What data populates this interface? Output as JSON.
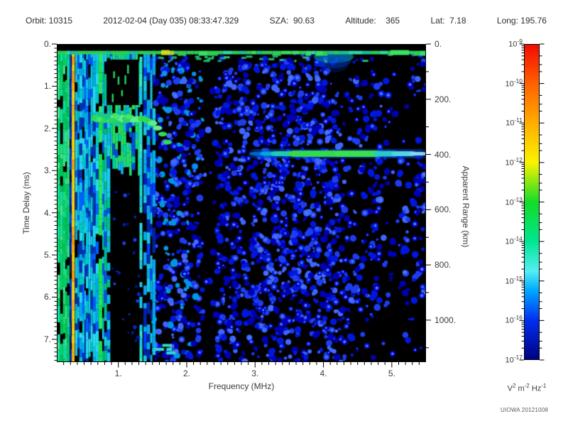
{
  "header": {
    "fields": [
      {
        "label": "Orbit: ",
        "value": "10315"
      },
      {
        "label": "",
        "value": "2012-02-04 (Day 035) 08:33:47.329"
      },
      {
        "label": "SZA:  ",
        "value": "90.63"
      },
      {
        "label": "Altitude:    ",
        "value": "365"
      },
      {
        "label": "Lat:  ",
        "value": "7.18"
      },
      {
        "label": "Long: ",
        "value": "195.76"
      }
    ]
  },
  "chart_data": {
    "type": "heatmap",
    "description": "Radar sounder ionogram spectrogram: spectral density vs frequency and time delay",
    "xlabel": "Frequency (MHz)",
    "x_range_mhz": [
      0.1,
      5.5
    ],
    "x_major_ticks": [
      1,
      2,
      3,
      4,
      5
    ],
    "x_tick_labels": [
      "1.",
      "2.",
      "3.",
      "4.",
      "5."
    ],
    "x_minor_step": 0.1,
    "ylabel_left": "Time Delay (ms)",
    "y_range_ms": [
      0,
      7.54
    ],
    "y_major_ticks_ms": [
      0,
      1,
      2,
      3,
      4,
      5,
      6,
      7
    ],
    "y_tick_labels_ms": [
      "0.",
      "1.",
      "2.",
      "3.",
      "4.",
      "5.",
      "6.",
      "7."
    ],
    "y_minor_step_ms": 0.1,
    "ylabel_right": "Apparent Range (km)",
    "y_range_km": [
      0,
      1152
    ],
    "y_major_ticks_km": [
      0,
      200,
      400,
      600,
      800,
      1000
    ],
    "y_tick_labels_km": [
      "0.",
      "200.",
      "400.",
      "600.",
      "800.",
      "1000."
    ],
    "y_minor_step_km": 100,
    "grid": false,
    "colorbar": {
      "scale": "log",
      "exponents": [
        -9,
        -10,
        -11,
        -12,
        -13,
        -14,
        -15,
        -16,
        -17
      ],
      "unit_parts": [
        {
          "base": "V",
          "exp": "2"
        },
        {
          "base": "m",
          "exp": "-2"
        },
        {
          "base": "Hz",
          "exp": "-1"
        }
      ],
      "gradient": [
        {
          "pos": 0.0,
          "color": "#f20c00"
        },
        {
          "pos": 0.07,
          "color": "#fb3a00"
        },
        {
          "pos": 0.125,
          "color": "#ff6200"
        },
        {
          "pos": 0.25,
          "color": "#ffae00"
        },
        {
          "pos": 0.375,
          "color": "#fbf300"
        },
        {
          "pos": 0.5,
          "color": "#14dc28"
        },
        {
          "pos": 0.625,
          "color": "#00e591"
        },
        {
          "pos": 0.72,
          "color": "#55eef0"
        },
        {
          "pos": 0.78,
          "color": "#00aaff"
        },
        {
          "pos": 0.875,
          "color": "#0030f0"
        },
        {
          "pos": 1.0,
          "color": "#000082"
        }
      ]
    },
    "features": {
      "top_gap_ms": 0.16,
      "agc_band": {
        "t_ms": 0.22,
        "thickness_ms": 0.1,
        "f_mhz": [
          0.1,
          5.5
        ]
      },
      "interference_zone_mhz": [
        0.1,
        1.53
      ],
      "orange_interference_line_mhz": 0.34,
      "green_interference_line_mhz": 1.31,
      "dark_column_mhz": [
        0.85,
        1.3
      ],
      "quiet_band_mhz": [
        2.24,
        2.42
      ],
      "echo_trace": {
        "f_mhz": [
          0.7,
          1.72
        ],
        "t_ms": [
          1.74,
          2.32
        ]
      },
      "surface_echo": {
        "t_ms": 2.6,
        "f_mhz": [
          3.0,
          5.5
        ],
        "apparent_range_km": 390
      },
      "background": "scattered blue noise speckle on black"
    }
  },
  "watermark": "UIOWA 20121008",
  "colors": {
    "plot_bg": "#000000",
    "frame": "#000000",
    "text": "#333333"
  }
}
